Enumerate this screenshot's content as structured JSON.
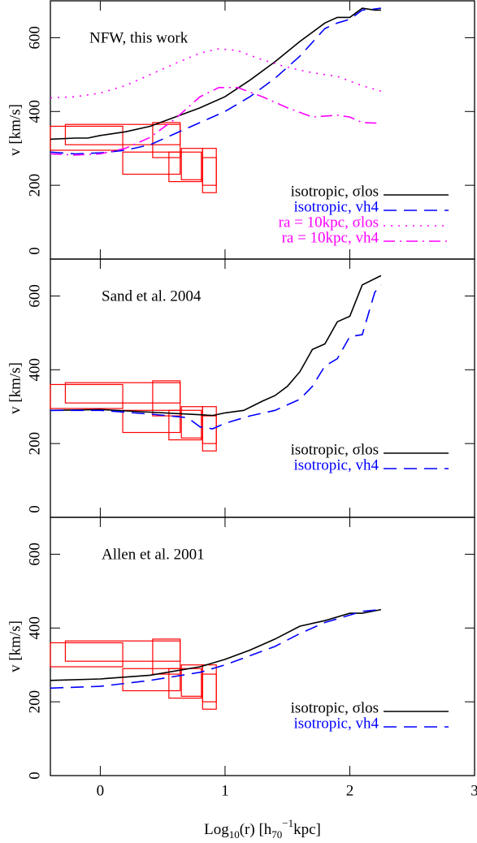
{
  "chart_data": [
    {
      "type": "line",
      "annotation": "NFW, this work",
      "y_label": "v  [km/s]",
      "xlim": [
        -0.4,
        3
      ],
      "ylim": [
        0,
        700
      ],
      "xticks": [
        0,
        1,
        2,
        3
      ],
      "yticks": [
        0,
        200,
        400,
        600
      ],
      "show_xtick_labels": false,
      "legend": "lower right",
      "boxes": {
        "color": "#ff0000",
        "x0": [
          -0.4,
          -0.28,
          0.18,
          0.42,
          0.55,
          0.65,
          0.82,
          0.82
        ],
        "x1": [
          0.18,
          0.64,
          0.64,
          0.64,
          0.81,
          0.82,
          0.93,
          0.93
        ],
        "y0": [
          295,
          310,
          230,
          275,
          210,
          215,
          180,
          200
        ],
        "y1": [
          360,
          365,
          290,
          370,
          290,
          300,
          300,
          275
        ]
      },
      "series": [
        {
          "name": "isotropic, σlos",
          "color": "#000000",
          "style": "solid",
          "x": [
            -0.4,
            -0.2,
            -0.1,
            0,
            0.2,
            0.4,
            0.6,
            0.8,
            1.0,
            1.2,
            1.4,
            1.6,
            1.8,
            1.9,
            2.0,
            2.1,
            2.2,
            2.25
          ],
          "values": [
            325,
            328,
            328,
            335,
            345,
            360,
            385,
            410,
            440,
            485,
            535,
            590,
            640,
            655,
            655,
            680,
            675,
            675
          ]
        },
        {
          "name": "isotropic, vh4",
          "color": "#0000ff",
          "style": "dashed",
          "x": [
            -0.4,
            -0.2,
            0,
            0.2,
            0.4,
            0.6,
            0.8,
            1.0,
            1.2,
            1.4,
            1.6,
            1.8,
            1.9,
            2.0,
            2.1,
            2.2,
            2.25
          ],
          "values": [
            290,
            285,
            288,
            295,
            310,
            340,
            370,
            400,
            440,
            490,
            550,
            625,
            640,
            650,
            675,
            678,
            680
          ]
        },
        {
          "name": "ra = 10kpc, σlos",
          "color": "#ff00ff",
          "style": "dotted",
          "x": [
            -0.4,
            -0.2,
            0,
            0.2,
            0.4,
            0.6,
            0.8,
            0.95,
            1.1,
            1.3,
            1.5,
            1.7,
            1.9,
            2.1,
            2.25
          ],
          "values": [
            437,
            440,
            450,
            470,
            500,
            530,
            558,
            570,
            565,
            540,
            520,
            505,
            495,
            470,
            455
          ]
        },
        {
          "name": "ra = 10kpc, vh4",
          "color": "#ff00ff",
          "style": "dashdot",
          "x": [
            -0.4,
            -0.2,
            0,
            0.2,
            0.4,
            0.6,
            0.8,
            0.95,
            1.1,
            1.3,
            1.5,
            1.7,
            1.9,
            2.0,
            2.1,
            2.25
          ],
          "values": [
            285,
            282,
            285,
            300,
            330,
            380,
            440,
            465,
            465,
            440,
            410,
            385,
            390,
            385,
            370,
            368
          ]
        }
      ]
    },
    {
      "type": "line",
      "annotation": "Sand et al. 2004",
      "y_label": "v  [km/s]",
      "xlim": [
        -0.4,
        3
      ],
      "ylim": [
        0,
        700
      ],
      "xticks": [
        0,
        1,
        2,
        3
      ],
      "yticks": [
        0,
        200,
        400,
        600
      ],
      "show_xtick_labels": false,
      "legend": "lower right",
      "boxes": {
        "color": "#ff0000",
        "x0": [
          -0.4,
          -0.28,
          0.18,
          0.42,
          0.55,
          0.65,
          0.82,
          0.82
        ],
        "x1": [
          0.18,
          0.64,
          0.64,
          0.64,
          0.81,
          0.82,
          0.93,
          0.93
        ],
        "y0": [
          295,
          310,
          230,
          275,
          210,
          215,
          180,
          200
        ],
        "y1": [
          360,
          365,
          290,
          370,
          290,
          300,
          300,
          275
        ]
      },
      "series": [
        {
          "name": "isotropic, σlos",
          "color": "#000000",
          "style": "solid",
          "x": [
            -0.4,
            0,
            0.4,
            0.8,
            0.9,
            1.0,
            1.15,
            1.3,
            1.4,
            1.5,
            1.6,
            1.7,
            1.8,
            1.9,
            2.0,
            2.1,
            2.25
          ],
          "values": [
            290,
            292,
            285,
            278,
            276,
            283,
            290,
            315,
            330,
            355,
            395,
            455,
            470,
            530,
            545,
            630,
            655
          ]
        },
        {
          "name": "isotropic, vh4",
          "color": "#0000ff",
          "style": "dashed",
          "x": [
            -0.4,
            0,
            0.4,
            0.7,
            0.8,
            0.9,
            1.0,
            1.2,
            1.4,
            1.6,
            1.7,
            1.8,
            1.9,
            2.0,
            2.1,
            2.2,
            2.25
          ],
          "values": [
            290,
            290,
            280,
            270,
            245,
            240,
            255,
            275,
            290,
            320,
            355,
            410,
            430,
            490,
            495,
            610,
            630
          ]
        }
      ]
    },
    {
      "type": "line",
      "annotation": "Allen et al. 2001",
      "y_label": "v  [km/s]",
      "x_label": [
        "Log",
        "10",
        "(r)   [h",
        "70",
        "−1",
        "kpc]"
      ],
      "xlim": [
        -0.4,
        3
      ],
      "ylim": [
        0,
        700
      ],
      "xticks": [
        0,
        1,
        2,
        3
      ],
      "yticks": [
        0,
        200,
        400,
        600
      ],
      "show_xtick_labels": true,
      "legend": "lower right",
      "boxes": {
        "color": "#ff0000",
        "x0": [
          -0.4,
          -0.28,
          0.18,
          0.42,
          0.55,
          0.65,
          0.82,
          0.82
        ],
        "x1": [
          0.18,
          0.64,
          0.64,
          0.64,
          0.81,
          0.82,
          0.93,
          0.93
        ],
        "y0": [
          295,
          310,
          230,
          275,
          210,
          215,
          180,
          200
        ],
        "y1": [
          360,
          365,
          290,
          370,
          290,
          300,
          300,
          275
        ]
      },
      "series": [
        {
          "name": "isotropic, σlos",
          "color": "#000000",
          "style": "solid",
          "x": [
            -0.4,
            0,
            0.4,
            0.8,
            1.0,
            1.2,
            1.4,
            1.6,
            1.8,
            2.0,
            2.1,
            2.25
          ],
          "values": [
            258,
            262,
            272,
            295,
            315,
            340,
            370,
            405,
            420,
            440,
            440,
            450
          ]
        },
        {
          "name": "isotropic, vh4",
          "color": "#0000ff",
          "style": "dashed",
          "x": [
            -0.4,
            0,
            0.4,
            0.8,
            1.0,
            1.2,
            1.4,
            1.6,
            1.8,
            2.0,
            2.1,
            2.25
          ],
          "values": [
            237,
            242,
            258,
            280,
            300,
            325,
            350,
            385,
            415,
            435,
            445,
            450
          ]
        }
      ]
    }
  ]
}
